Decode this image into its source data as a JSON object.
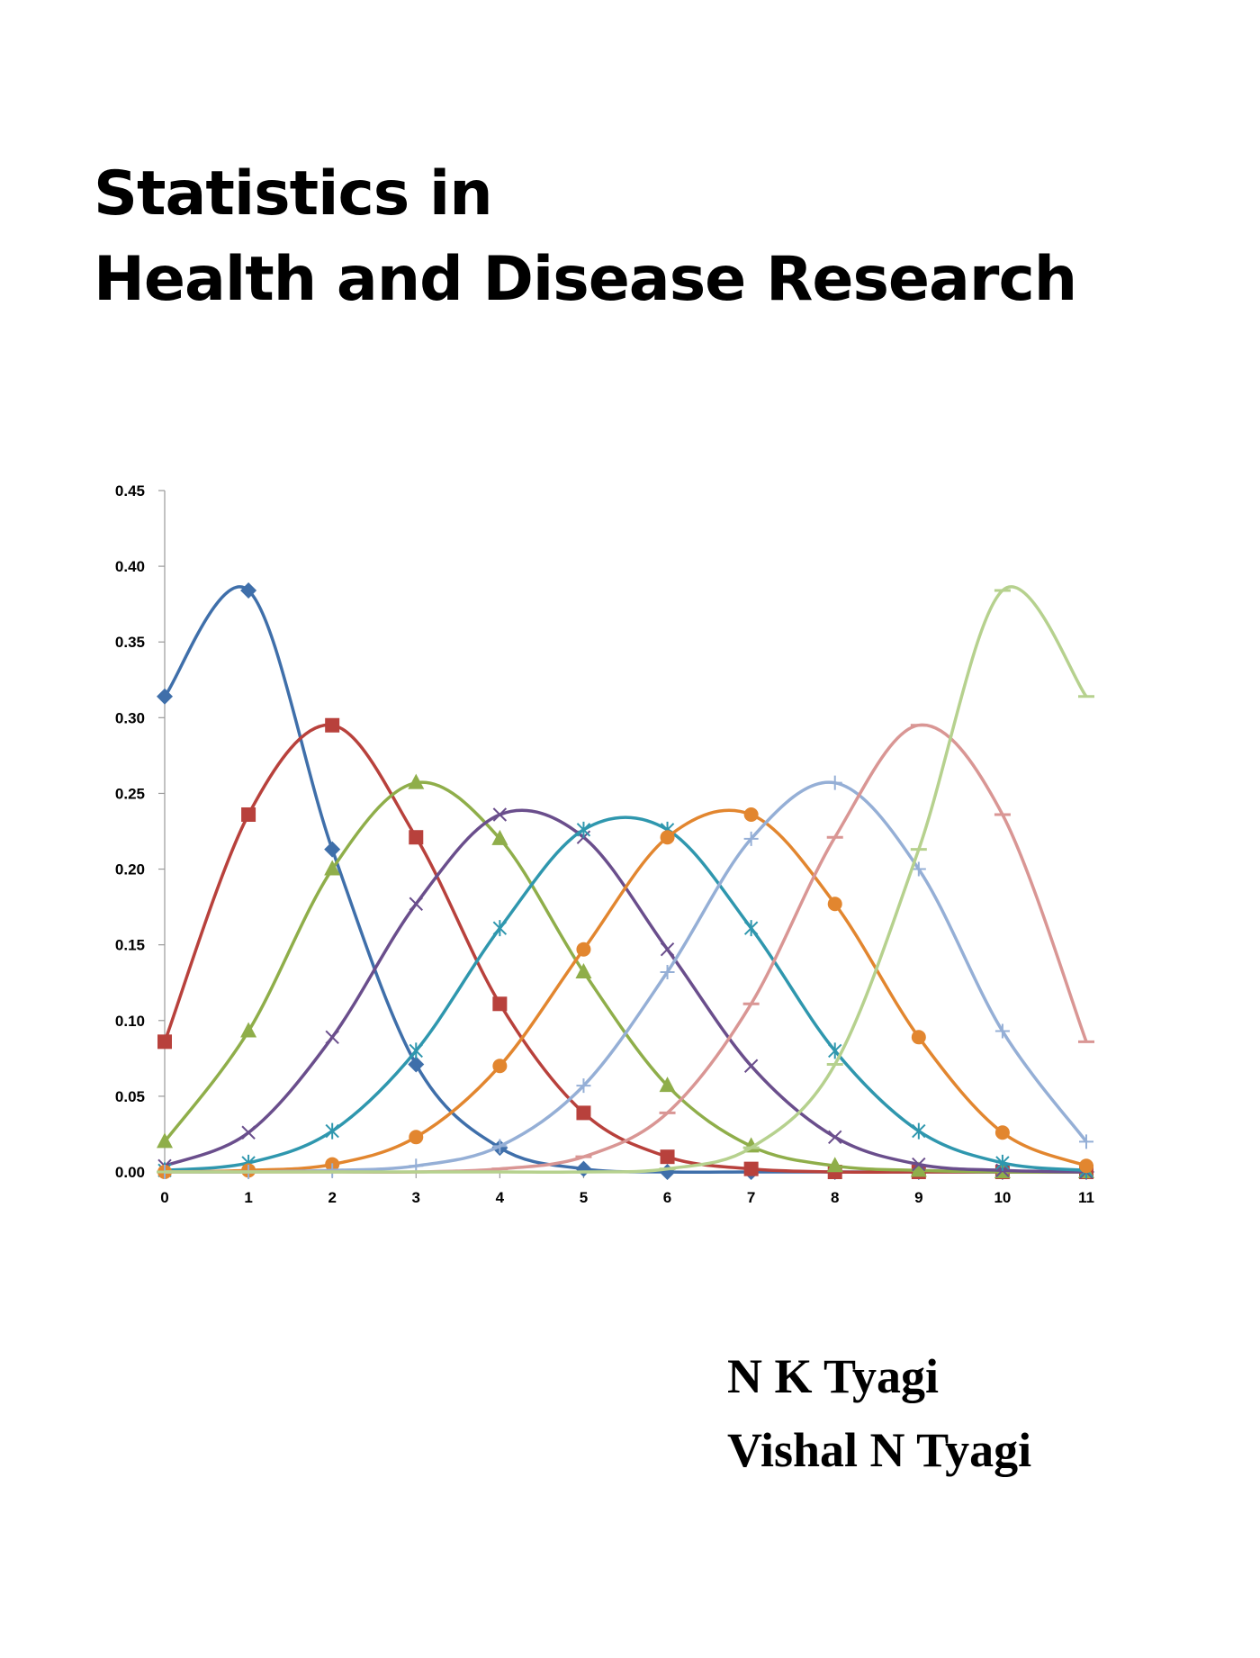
{
  "book": {
    "title_line1": "Statistics in",
    "title_line2": "Health and Disease Research",
    "author1": "N K Tyagi",
    "author2": "Vishal N Tyagi"
  },
  "chart_data": {
    "type": "line",
    "title": "",
    "xlabel": "",
    "ylabel": "",
    "x": [
      0,
      1,
      2,
      3,
      4,
      5,
      6,
      7,
      8,
      9,
      10,
      11
    ],
    "x_tick_labels": [
      "0",
      "1",
      "2",
      "3",
      "4",
      "5",
      "6",
      "7",
      "8",
      "9",
      "10",
      "11"
    ],
    "y_tick_labels": [
      "0.00",
      "0.05",
      "0.10",
      "0.15",
      "0.20",
      "0.25",
      "0.30",
      "0.35",
      "0.40",
      "0.45"
    ],
    "xlim": [
      0,
      11
    ],
    "ylim": [
      0,
      0.45
    ],
    "grid": false,
    "legend": "none",
    "smooth": true,
    "series": [
      {
        "color": "#3F6FAA",
        "marker": "diamond",
        "values": [
          0.314,
          0.384,
          0.213,
          0.071,
          0.016,
          0.002,
          0.0,
          0.0,
          0.0,
          0.0,
          0.0,
          0.0
        ]
      },
      {
        "color": "#B8413C",
        "marker": "square",
        "values": [
          0.086,
          0.236,
          0.295,
          0.221,
          0.111,
          0.039,
          0.01,
          0.002,
          0.0,
          0.0,
          0.0,
          0.0
        ]
      },
      {
        "color": "#8FAE4A",
        "marker": "triangle",
        "values": [
          0.02,
          0.093,
          0.2,
          0.257,
          0.22,
          0.132,
          0.057,
          0.017,
          0.004,
          0.001,
          0.0,
          0.0
        ]
      },
      {
        "color": "#6A4E8C",
        "marker": "x",
        "values": [
          0.004,
          0.026,
          0.089,
          0.177,
          0.236,
          0.221,
          0.147,
          0.07,
          0.023,
          0.005,
          0.001,
          0.0
        ]
      },
      {
        "color": "#2F97AE",
        "marker": "star",
        "values": [
          0.001,
          0.006,
          0.027,
          0.08,
          0.161,
          0.226,
          0.226,
          0.161,
          0.08,
          0.027,
          0.006,
          0.001
        ]
      },
      {
        "color": "#E2862F",
        "marker": "circle",
        "values": [
          0.0,
          0.001,
          0.005,
          0.023,
          0.07,
          0.147,
          0.221,
          0.236,
          0.177,
          0.089,
          0.026,
          0.004
        ]
      },
      {
        "color": "#95AFD6",
        "marker": "plus",
        "values": [
          0.0,
          0.0,
          0.001,
          0.004,
          0.017,
          0.057,
          0.132,
          0.22,
          0.257,
          0.2,
          0.093,
          0.02
        ]
      },
      {
        "color": "#D99694",
        "marker": "dash",
        "values": [
          0.0,
          0.0,
          0.0,
          0.0,
          0.002,
          0.01,
          0.039,
          0.111,
          0.221,
          0.295,
          0.236,
          0.086
        ]
      },
      {
        "color": "#B6D18E",
        "marker": "dash",
        "values": [
          0.0,
          0.0,
          0.0,
          0.0,
          0.0,
          0.0,
          0.002,
          0.016,
          0.071,
          0.213,
          0.384,
          0.314
        ]
      }
    ]
  }
}
